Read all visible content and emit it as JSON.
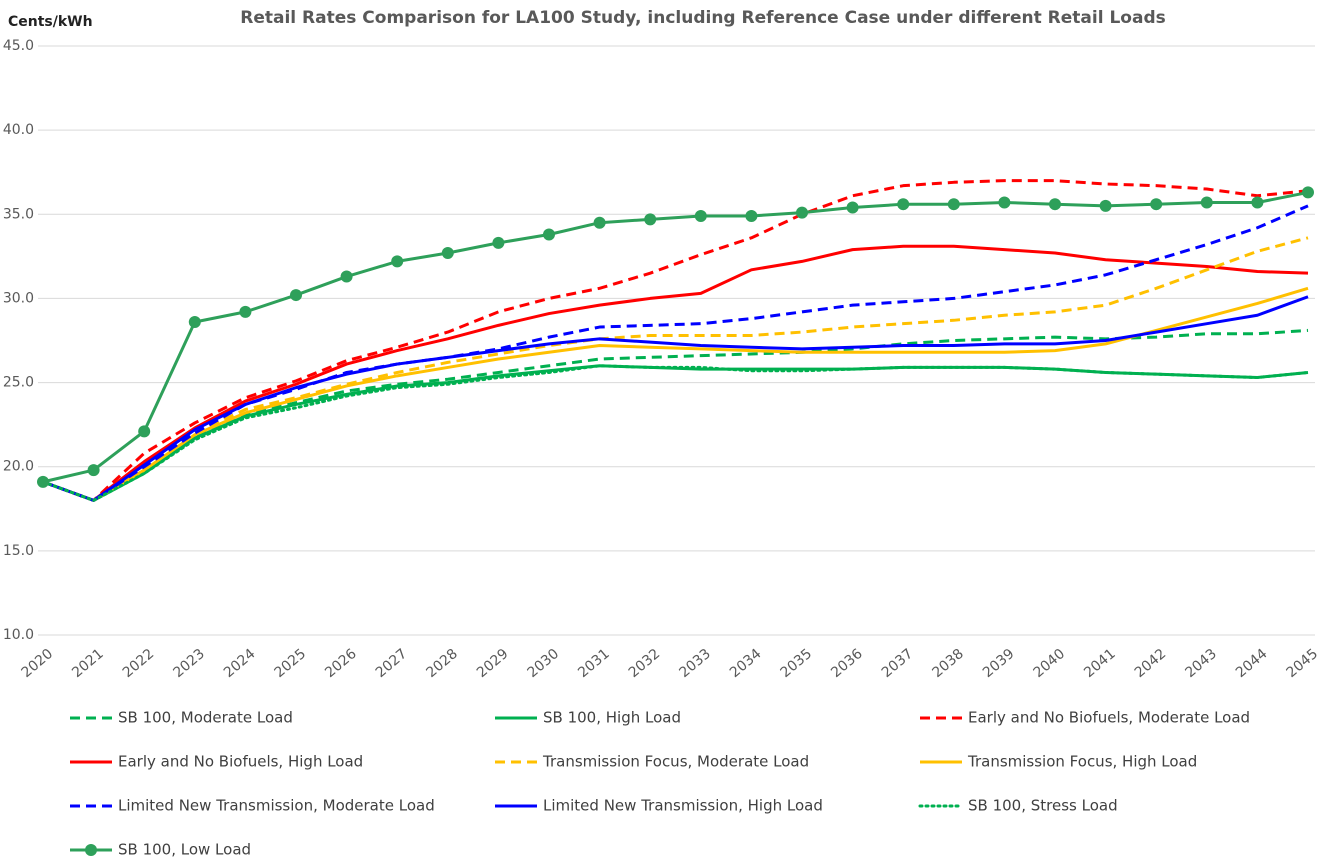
{
  "chart_data": {
    "type": "line",
    "title": "Retail Rates Comparison for LA100 Study, including Reference Case under different Retail Loads",
    "y_label": "Cents/kWh",
    "categories": [
      "2020",
      "2021",
      "2022",
      "2023",
      "2024",
      "2025",
      "2026",
      "2027",
      "2028",
      "2029",
      "2030",
      "2031",
      "2032",
      "2033",
      "2034",
      "2035",
      "2036",
      "2037",
      "2038",
      "2039",
      "2040",
      "2041",
      "2042",
      "2043",
      "2044",
      "2045"
    ],
    "ylim": [
      10,
      45
    ],
    "yticks": [
      {
        "value": 10,
        "label": "10.0"
      },
      {
        "value": 15,
        "label": "15.0"
      },
      {
        "value": 20,
        "label": "20.0"
      },
      {
        "value": 25,
        "label": "25.0"
      },
      {
        "value": 30,
        "label": "30.0"
      },
      {
        "value": 35,
        "label": "35.0"
      },
      {
        "value": 40,
        "label": "40.0"
      },
      {
        "value": 45,
        "label": "45.0"
      }
    ],
    "grid": true,
    "legend": "bottom",
    "series": [
      {
        "name": "SB 100, Moderate Load",
        "color": "#00b050",
        "dash": "dashed",
        "values": [
          19.1,
          18.0,
          19.7,
          21.8,
          23.1,
          23.8,
          24.5,
          24.9,
          25.2,
          25.6,
          26.0,
          26.4,
          26.5,
          26.6,
          26.7,
          26.8,
          27.0,
          27.3,
          27.5,
          27.6,
          27.7,
          27.6,
          27.7,
          27.9,
          27.9,
          28.1
        ]
      },
      {
        "name": "SB 100, High Load",
        "color": "#00b050",
        "dash": "solid",
        "values": [
          19.1,
          18.0,
          19.6,
          21.7,
          23.0,
          23.7,
          24.3,
          24.8,
          25.0,
          25.4,
          25.7,
          26.0,
          25.9,
          25.8,
          25.8,
          25.8,
          25.8,
          25.9,
          25.9,
          25.9,
          25.8,
          25.6,
          25.5,
          25.4,
          25.3,
          25.6
        ]
      },
      {
        "name": "Early and No Biofuels, Moderate Load",
        "color": "#ff0000",
        "dash": "dashed",
        "values": [
          19.1,
          18.0,
          20.8,
          22.6,
          24.1,
          25.1,
          26.3,
          27.1,
          28.0,
          29.2,
          30.0,
          30.6,
          31.5,
          32.6,
          33.6,
          35.0,
          36.1,
          36.7,
          36.9,
          37.0,
          37.0,
          36.8,
          36.7,
          36.5,
          36.1,
          36.4
        ]
      },
      {
        "name": "Early and No Biofuels, High Load",
        "color": "#ff0000",
        "dash": "solid",
        "values": [
          19.1,
          18.0,
          20.3,
          22.3,
          23.9,
          24.9,
          26.1,
          26.9,
          27.6,
          28.4,
          29.1,
          29.6,
          30.0,
          30.3,
          31.7,
          32.2,
          32.9,
          33.1,
          33.1,
          32.9,
          32.7,
          32.3,
          32.1,
          31.9,
          31.6,
          31.5
        ]
      },
      {
        "name": "Transmission Focus, Moderate Load",
        "color": "#ffc000",
        "dash": "dashed",
        "values": [
          19.1,
          18.0,
          19.8,
          22.0,
          23.4,
          24.1,
          24.9,
          25.6,
          26.2,
          26.7,
          27.2,
          27.6,
          27.8,
          27.8,
          27.8,
          28.0,
          28.3,
          28.5,
          28.7,
          29.0,
          29.2,
          29.6,
          30.6,
          31.7,
          32.8,
          33.6
        ]
      },
      {
        "name": "Transmission Focus, High Load",
        "color": "#ffc000",
        "dash": "solid",
        "values": [
          19.1,
          18.0,
          19.8,
          21.9,
          23.2,
          24.0,
          24.8,
          25.4,
          25.9,
          26.4,
          26.8,
          27.2,
          27.1,
          27.0,
          26.9,
          26.8,
          26.8,
          26.8,
          26.8,
          26.8,
          26.9,
          27.3,
          28.1,
          28.9,
          29.7,
          30.6
        ]
      },
      {
        "name": "Limited New Transmission, Moderate Load",
        "color": "#0000ff",
        "dash": "dashed",
        "values": [
          19.1,
          18.0,
          20.0,
          22.0,
          23.7,
          24.6,
          25.6,
          26.1,
          26.5,
          27.0,
          27.7,
          28.3,
          28.4,
          28.5,
          28.8,
          29.2,
          29.6,
          29.8,
          30.0,
          30.4,
          30.8,
          31.4,
          32.3,
          33.2,
          34.2,
          35.5
        ]
      },
      {
        "name": "Limited New Transmission, High Load",
        "color": "#0000ff",
        "dash": "solid",
        "values": [
          19.1,
          18.0,
          20.1,
          22.2,
          23.7,
          24.7,
          25.5,
          26.1,
          26.5,
          26.9,
          27.3,
          27.6,
          27.4,
          27.2,
          27.1,
          27.0,
          27.1,
          27.2,
          27.2,
          27.3,
          27.3,
          27.5,
          28.0,
          28.5,
          29.0,
          30.1
        ]
      },
      {
        "name": "SB 100, Stress Load",
        "color": "#00b050",
        "dash": "dotted",
        "values": [
          19.1,
          18.0,
          19.6,
          21.6,
          22.9,
          23.5,
          24.2,
          24.7,
          24.9,
          25.3,
          25.6,
          26.0,
          25.9,
          25.9,
          25.7,
          25.7,
          25.8,
          25.9,
          25.9,
          25.9,
          25.8,
          25.6,
          25.5,
          25.4,
          25.3,
          25.6
        ]
      },
      {
        "name": "SB 100, Low Load",
        "color": "#2ea05a",
        "dash": "solid",
        "marker": "circle",
        "values": [
          19.1,
          19.8,
          22.1,
          28.6,
          29.2,
          30.2,
          31.3,
          32.2,
          32.7,
          33.3,
          33.8,
          34.5,
          34.7,
          34.9,
          34.9,
          35.1,
          35.4,
          35.6,
          35.6,
          35.7,
          35.6,
          35.5,
          35.6,
          35.7,
          35.7,
          36.3
        ]
      }
    ]
  }
}
